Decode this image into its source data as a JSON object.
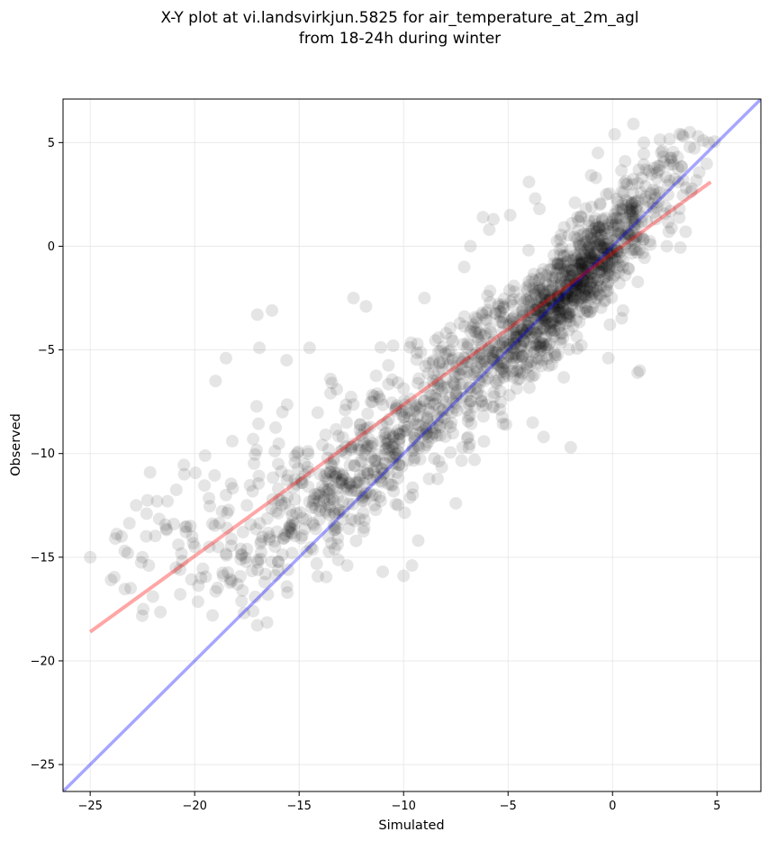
{
  "chart_data": {
    "type": "scatter",
    "title": "X-Y plot at vi.landsvirkjun.5825 for air_temperature_at_2m_agl",
    "subtitle": "from 18-24h during winter",
    "xlabel": "Simulated",
    "ylabel": "Observed",
    "xlim": [
      -26.3,
      7.1
    ],
    "ylim": [
      -26.3,
      7.1
    ],
    "xticks": [
      -25,
      -20,
      -15,
      -10,
      -5,
      0,
      5
    ],
    "yticks": [
      -25,
      -20,
      -15,
      -10,
      -5,
      0,
      5
    ],
    "tick_labels": [
      "−25",
      "−20",
      "−15",
      "−10",
      "−5",
      "0",
      "5"
    ],
    "grid": true,
    "point_color": "#000000",
    "point_alpha": 0.1,
    "reference_line": {
      "from": [
        -26.3,
        -26.3
      ],
      "to": [
        7.1,
        7.1
      ],
      "color": "#0000ff",
      "alpha": 0.35
    },
    "fit_line": {
      "from": [
        -25.0,
        -18.6
      ],
      "to": [
        4.7,
        3.1
      ],
      "color": "#ff0000",
      "alpha": 0.35
    },
    "clusters": [
      {
        "cx": -1.5,
        "cy": -1.5,
        "sx": 1.5,
        "sy": 1.6,
        "n": 520
      },
      {
        "cx": 1.2,
        "cy": 1.8,
        "sx": 1.5,
        "sy": 1.6,
        "n": 170
      },
      {
        "cx": -4.0,
        "cy": -4.0,
        "sx": 1.8,
        "sy": 1.9,
        "n": 260
      },
      {
        "cx": -8.0,
        "cy": -7.0,
        "sx": 2.8,
        "sy": 2.3,
        "n": 320
      },
      {
        "cx": -12.0,
        "cy": -11.0,
        "sx": 2.6,
        "sy": 1.8,
        "n": 220
      },
      {
        "cx": -15.0,
        "cy": -12.5,
        "sx": 2.6,
        "sy": 2.3,
        "n": 140
      },
      {
        "cx": -20.0,
        "cy": -13.0,
        "sx": 2.3,
        "sy": 2.2,
        "n": 60
      }
    ],
    "points": [
      [
        -25.0,
        -15.0
      ],
      [
        -24.0,
        -16.1
      ],
      [
        -23.8,
        -14.1
      ],
      [
        -23.5,
        -14.0
      ],
      [
        -23.2,
        -14.8
      ],
      [
        -22.8,
        -12.5
      ],
      [
        -22.5,
        -15.0
      ],
      [
        -22.3,
        -12.9
      ],
      [
        -22.0,
        -16.9
      ],
      [
        -21.8,
        -12.3
      ],
      [
        -21.3,
        -12.3
      ],
      [
        -21.0,
        -13.4
      ],
      [
        -20.7,
        -15.6
      ],
      [
        -20.5,
        -11.0
      ],
      [
        -20.2,
        -13.5
      ],
      [
        -19.7,
        -16.0
      ],
      [
        -19.5,
        -10.1
      ],
      [
        -19.0,
        -6.5
      ],
      [
        -18.5,
        -5.4
      ],
      [
        -18.2,
        -9.4
      ],
      [
        -17.8,
        -14.6
      ],
      [
        -17.5,
        -12.5
      ],
      [
        -17.2,
        -17.6
      ],
      [
        -17.0,
        -3.3
      ],
      [
        -16.9,
        -4.9
      ],
      [
        -16.5,
        -16.8
      ],
      [
        -16.3,
        -3.1
      ],
      [
        -16.0,
        -11.7
      ],
      [
        -15.6,
        -5.5
      ],
      [
        -14.5,
        -4.9
      ],
      [
        -13.5,
        -6.4
      ],
      [
        -13.3,
        -14.6
      ],
      [
        -12.7,
        -15.4
      ],
      [
        -12.4,
        -2.5
      ],
      [
        -11.8,
        -2.9
      ],
      [
        -11.0,
        -15.7
      ],
      [
        -10.0,
        -15.9
      ],
      [
        -9.6,
        -15.4
      ],
      [
        -9.3,
        -14.2
      ],
      [
        -7.5,
        -12.4
      ],
      [
        -7.1,
        -1.0
      ],
      [
        -6.8,
        0.0
      ],
      [
        -6.2,
        1.4
      ],
      [
        -5.9,
        0.8
      ],
      [
        -5.7,
        1.3
      ],
      [
        -5.1,
        -8.6
      ],
      [
        -4.9,
        1.5
      ],
      [
        -4.7,
        -2.2
      ],
      [
        -4.0,
        3.1
      ],
      [
        -3.7,
        2.3
      ],
      [
        -3.5,
        1.8
      ],
      [
        -3.3,
        -9.2
      ],
      [
        -2.0,
        -9.7
      ],
      [
        -1.8,
        2.1
      ],
      [
        -1.5,
        1.4
      ],
      [
        -1.0,
        1.9
      ],
      [
        -0.8,
        3.3
      ],
      [
        -0.7,
        4.5
      ],
      [
        -0.3,
        2.5
      ],
      [
        -0.2,
        -5.4
      ],
      [
        0.1,
        5.4
      ],
      [
        0.5,
        -3.1
      ],
      [
        0.6,
        4.1
      ],
      [
        1.0,
        5.9
      ],
      [
        1.2,
        -6.1
      ],
      [
        1.3,
        -6.0
      ],
      [
        1.5,
        5.0
      ],
      [
        2.6,
        0.0
      ],
      [
        3.2,
        1.8
      ],
      [
        3.5,
        0.7
      ],
      [
        3.7,
        5.5
      ],
      [
        4.1,
        5.3
      ],
      [
        4.6,
        5.0
      ],
      [
        -2.5,
        -4.5
      ],
      [
        -3.0,
        -3.0
      ],
      [
        -6.5,
        -3.5
      ],
      [
        -9.0,
        -2.5
      ],
      [
        -10.5,
        -4.8
      ],
      [
        -8.5,
        -9.0
      ],
      [
        -11.5,
        -9.5
      ],
      [
        -14.0,
        -11.0
      ],
      [
        -16.0,
        -10.5
      ],
      [
        -18.5,
        -12.0
      ],
      [
        -20.0,
        -14.5
      ],
      [
        -19.3,
        -14.5
      ],
      [
        -17.2,
        -9.3
      ],
      [
        -15.8,
        -8.0
      ],
      [
        -13.2,
        -6.9
      ],
      [
        -12.8,
        -7.9
      ],
      [
        -10.8,
        -8.5
      ]
    ]
  }
}
